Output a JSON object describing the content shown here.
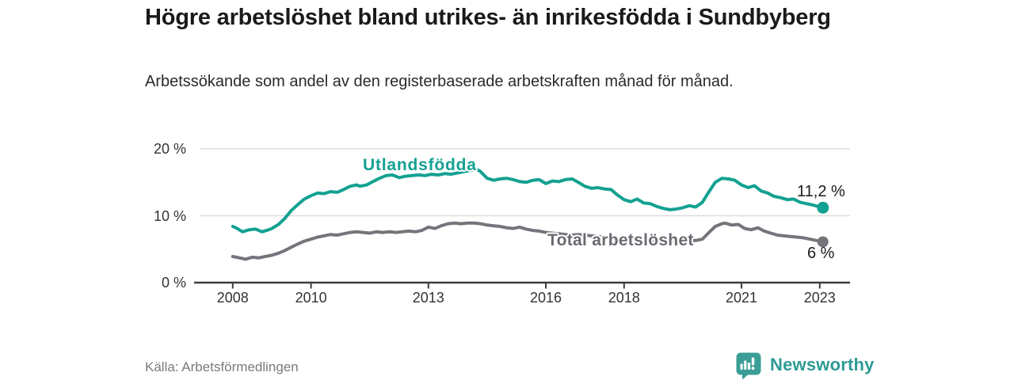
{
  "header": {
    "title": "Högre arbetslöshet bland utrikes- än inrikesfödda i Sundbyberg",
    "subtitle": "Arbetssökande som andel av den registerbaserade arbetskraften månad för månad."
  },
  "chart_data": {
    "type": "line",
    "title": "Högre arbetslöshet bland utrikes- än inrikesfödda i Sundbyberg",
    "xlabel": "",
    "ylabel": "",
    "unit": "%",
    "ylim": [
      0,
      20
    ],
    "xlim": [
      2007,
      2023.8
    ],
    "grid": "horizontal-only",
    "legend_position": "inline-labels",
    "y_ticks": [
      {
        "value": 20,
        "label": "20 %"
      },
      {
        "value": 10,
        "label": "10 %"
      },
      {
        "value": 0,
        "label": "0 %"
      }
    ],
    "x_ticks": [
      {
        "value": 2008,
        "label": "2008"
      },
      {
        "value": 2010,
        "label": "2010"
      },
      {
        "value": 2013,
        "label": "2013"
      },
      {
        "value": 2016,
        "label": "2016"
      },
      {
        "value": 2018,
        "label": "2018"
      },
      {
        "value": 2021,
        "label": "2021"
      },
      {
        "value": 2023,
        "label": "2023"
      }
    ],
    "series": [
      {
        "name": "Utlandsfödda",
        "color": "#13a191",
        "end_label": "11,2 %",
        "end_value": 11.2,
        "x": [
          2008.0,
          2008.08,
          2008.25,
          2008.42,
          2008.58,
          2008.75,
          2008.92,
          2009.0,
          2009.17,
          2009.33,
          2009.5,
          2009.67,
          2009.83,
          2010.0,
          2010.17,
          2010.33,
          2010.5,
          2010.67,
          2010.83,
          2011.0,
          2011.17,
          2011.25,
          2011.42,
          2011.58,
          2011.75,
          2011.92,
          2012.08,
          2012.25,
          2012.42,
          2012.58,
          2012.75,
          2012.92,
          2013.08,
          2013.25,
          2013.42,
          2013.58,
          2013.75,
          2013.92,
          2014.08,
          2014.25,
          2014.33,
          2014.5,
          2014.67,
          2014.83,
          2015.0,
          2015.17,
          2015.33,
          2015.5,
          2015.67,
          2015.83,
          2016.0,
          2016.17,
          2016.33,
          2016.5,
          2016.67,
          2016.83,
          2017.0,
          2017.17,
          2017.33,
          2017.5,
          2017.67,
          2017.83,
          2018.0,
          2018.17,
          2018.33,
          2018.5,
          2018.67,
          2018.83,
          2019.0,
          2019.17,
          2019.33,
          2019.5,
          2019.67,
          2019.83,
          2020.0,
          2020.17,
          2020.33,
          2020.5,
          2020.67,
          2020.83,
          2021.0,
          2021.17,
          2021.33,
          2021.5,
          2021.67,
          2021.83,
          2022.0,
          2022.17,
          2022.33,
          2022.5,
          2022.67,
          2022.83,
          2023.0,
          2023.08
        ],
        "values": [
          8.4,
          8.2,
          7.6,
          7.9,
          8.0,
          7.6,
          7.9,
          8.1,
          8.7,
          9.6,
          10.8,
          11.7,
          12.5,
          13.0,
          13.4,
          13.3,
          13.6,
          13.5,
          13.9,
          14.4,
          14.6,
          14.4,
          14.6,
          15.1,
          15.6,
          16.0,
          16.1,
          15.7,
          15.9,
          16.0,
          16.1,
          16.0,
          16.2,
          16.1,
          16.3,
          16.2,
          16.4,
          16.6,
          16.8,
          16.9,
          16.6,
          15.6,
          15.3,
          15.5,
          15.6,
          15.4,
          15.1,
          15.0,
          15.3,
          15.4,
          14.8,
          15.2,
          15.1,
          15.4,
          15.5,
          15.0,
          14.4,
          14.1,
          14.2,
          14.0,
          13.9,
          13.1,
          12.4,
          12.1,
          12.5,
          11.9,
          11.8,
          11.4,
          11.1,
          10.9,
          11.0,
          11.2,
          11.5,
          11.3,
          12.0,
          13.6,
          15.0,
          15.6,
          15.5,
          15.3,
          14.6,
          14.2,
          14.5,
          13.7,
          13.4,
          12.9,
          12.7,
          12.4,
          12.5,
          12.0,
          11.8,
          11.6,
          11.3,
          11.2
        ]
      },
      {
        "name": "Total arbetslöshet",
        "color": "#76747b",
        "end_label": "6 %",
        "end_value": 6.1,
        "x": [
          2008.0,
          2008.17,
          2008.33,
          2008.5,
          2008.67,
          2008.83,
          2009.0,
          2009.17,
          2009.33,
          2009.5,
          2009.67,
          2009.83,
          2010.0,
          2010.17,
          2010.33,
          2010.5,
          2010.67,
          2010.83,
          2011.0,
          2011.17,
          2011.33,
          2011.5,
          2011.67,
          2011.83,
          2012.0,
          2012.17,
          2012.33,
          2012.5,
          2012.67,
          2012.83,
          2013.0,
          2013.17,
          2013.33,
          2013.5,
          2013.67,
          2013.83,
          2014.0,
          2014.17,
          2014.33,
          2014.5,
          2014.67,
          2014.83,
          2015.0,
          2015.17,
          2015.33,
          2015.5,
          2015.67,
          2015.83,
          2016.0,
          2016.17,
          2016.33,
          2016.5,
          2016.67,
          2016.83,
          2017.0,
          2017.17,
          2017.33,
          2017.5,
          2017.67,
          2017.83,
          2018.0,
          2018.17,
          2018.33,
          2018.5,
          2018.67,
          2018.83,
          2019.0,
          2019.17,
          2019.33,
          2019.5,
          2019.67,
          2019.83,
          2020.0,
          2020.17,
          2020.33,
          2020.5,
          2020.58,
          2020.75,
          2020.92,
          2021.08,
          2021.25,
          2021.42,
          2021.58,
          2021.75,
          2021.92,
          2022.08,
          2022.25,
          2022.42,
          2022.58,
          2022.75,
          2022.92,
          2023.08
        ],
        "values": [
          3.9,
          3.7,
          3.5,
          3.8,
          3.7,
          3.9,
          4.1,
          4.4,
          4.8,
          5.3,
          5.8,
          6.2,
          6.5,
          6.8,
          7.0,
          7.2,
          7.1,
          7.3,
          7.5,
          7.6,
          7.5,
          7.4,
          7.6,
          7.5,
          7.6,
          7.5,
          7.6,
          7.7,
          7.6,
          7.8,
          8.3,
          8.1,
          8.5,
          8.8,
          8.9,
          8.8,
          8.9,
          8.9,
          8.8,
          8.6,
          8.5,
          8.4,
          8.2,
          8.1,
          8.3,
          8.0,
          7.8,
          7.7,
          7.5,
          7.4,
          7.3,
          7.2,
          7.1,
          7.2,
          7.1,
          7.0,
          6.9,
          6.8,
          6.7,
          6.6,
          6.6,
          6.5,
          6.5,
          6.4,
          6.4,
          6.3,
          6.3,
          6.2,
          6.2,
          6.3,
          6.3,
          6.3,
          6.5,
          7.5,
          8.4,
          8.8,
          8.9,
          8.6,
          8.7,
          8.1,
          7.9,
          8.2,
          7.7,
          7.4,
          7.1,
          7.0,
          6.9,
          6.8,
          6.7,
          6.5,
          6.3,
          6.1
        ]
      }
    ],
    "axis_color": "#3d3d3d",
    "gridline_color": "#dcdcdc"
  },
  "footer": {
    "source": "Källa: Arbetsförmedlingen",
    "brand": "Newsworthy"
  },
  "colors": {
    "accent_teal": "#13a191",
    "series_gray": "#76747b",
    "brand_teal": "#2d9b94",
    "text_dark": "#1a1a1a"
  }
}
